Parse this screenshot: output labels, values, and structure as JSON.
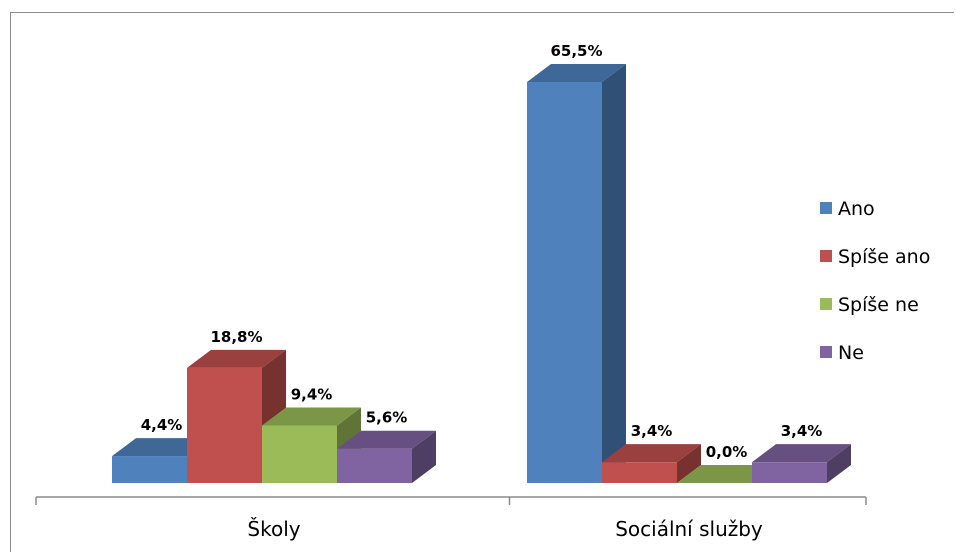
{
  "chart_data": {
    "type": "bar",
    "style": "3d-clustered-column",
    "categories": [
      "Školy",
      "Sociální služby"
    ],
    "series": [
      {
        "name": "Ano",
        "color": "#4F81BD",
        "values": [
          4.4,
          65.5
        ],
        "labels": [
          "4,4%",
          "65,5%"
        ]
      },
      {
        "name": "Spíše ano",
        "color": "#C0504D",
        "values": [
          18.8,
          3.4
        ],
        "labels": [
          "18,8%",
          "3,4%"
        ]
      },
      {
        "name": "Spíše ne",
        "color": "#9BBB59",
        "values": [
          9.4,
          0.0
        ],
        "labels": [
          "9,4%",
          "0,0%"
        ]
      },
      {
        "name": "Ne",
        "color": "#8064A2",
        "values": [
          5.6,
          3.4
        ],
        "labels": [
          "5,6%",
          "3,4%"
        ]
      }
    ],
    "ylim": [
      0,
      70
    ],
    "grid": false,
    "legend": "right"
  }
}
